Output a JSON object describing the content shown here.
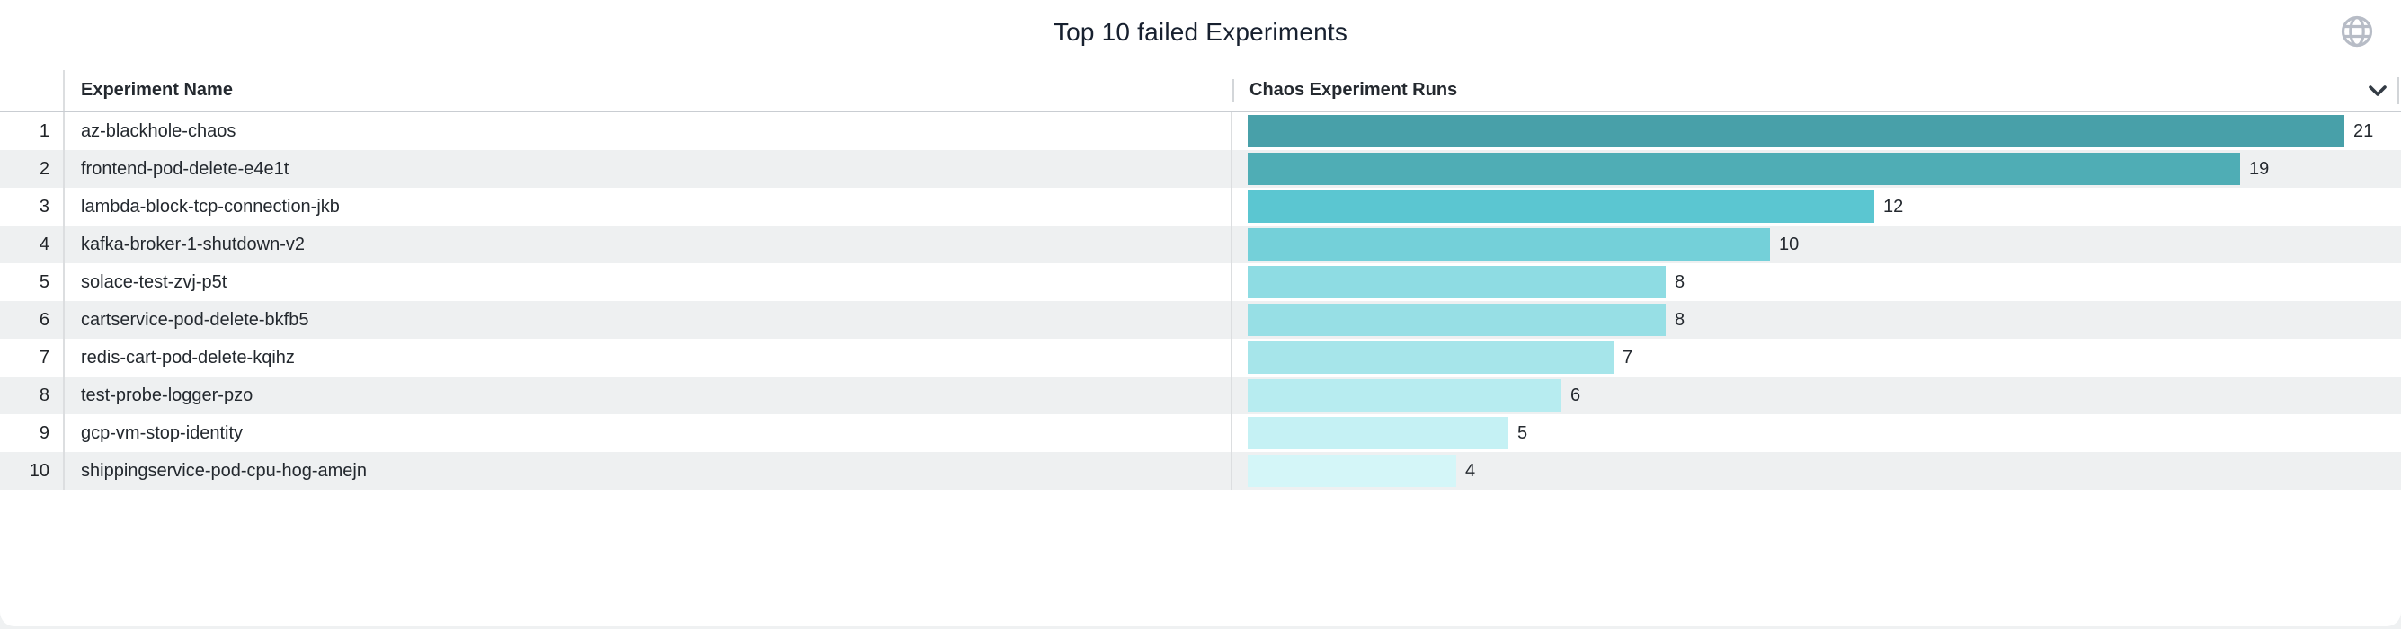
{
  "panel": {
    "title": "Top 10 failed Experiments"
  },
  "icons": {
    "globe": "globe-icon",
    "chevron": "chevron-down-icon"
  },
  "colors": {
    "title_text": "#17202f",
    "header_text": "#24292f",
    "row_text": "#23282e",
    "alt_row_bg": "#eef0f1",
    "divider": "#dcdee0",
    "header_border": "#c9cdd2",
    "globe_icon": "#b7bcc6",
    "chevron_icon": "#333b44",
    "bar_scale_dark": "#48a0a9",
    "bar_scale_light": "#d4f6f8"
  },
  "table": {
    "columns": [
      {
        "label": "Experiment Name"
      },
      {
        "label": "Chaos Experiment Runs"
      }
    ],
    "max_runs": 21,
    "rows": [
      {
        "rank": "1",
        "name": "az-blackhole-chaos",
        "runs": 21,
        "color": "#48a0a9"
      },
      {
        "rank": "2",
        "name": "frontend-pod-delete-e4e1t",
        "runs": 19,
        "color": "#4fadb5"
      },
      {
        "rank": "3",
        "name": "lambda-block-tcp-connection-jkb",
        "runs": 12,
        "color": "#5bc6d1"
      },
      {
        "rank": "4",
        "name": "kafka-broker-1-shutdown-v2",
        "runs": 10,
        "color": "#74d0d9"
      },
      {
        "rank": "5",
        "name": "solace-test-zvj-p5t",
        "runs": 8,
        "color": "#8edce3"
      },
      {
        "rank": "6",
        "name": "cartservice-pod-delete-bkfb5",
        "runs": 8,
        "color": "#97dfe5"
      },
      {
        "rank": "7",
        "name": "redis-cart-pod-delete-kqihz",
        "runs": 7,
        "color": "#a6e5ea"
      },
      {
        "rank": "8",
        "name": "test-probe-logger-pzo",
        "runs": 6,
        "color": "#b7ecf0"
      },
      {
        "rank": "9",
        "name": "gcp-vm-stop-identity",
        "runs": 5,
        "color": "#c5f1f4"
      },
      {
        "rank": "10",
        "name": "shippingservice-pod-cpu-hog-amejn",
        "runs": 4,
        "color": "#d4f6f8"
      }
    ]
  },
  "chart_data": {
    "type": "bar",
    "orientation": "horizontal",
    "title": "Top 10 failed Experiments",
    "xlabel": "Chaos Experiment Runs",
    "ylabel": "Experiment Name",
    "categories": [
      "az-blackhole-chaos",
      "frontend-pod-delete-e4e1t",
      "lambda-block-tcp-connection-jkb",
      "kafka-broker-1-shutdown-v2",
      "solace-test-zvj-p5t",
      "cartservice-pod-delete-bkfb5",
      "redis-cart-pod-delete-kqihz",
      "test-probe-logger-pzo",
      "gcp-vm-stop-identity",
      "shippingservice-pod-cpu-hog-amejn"
    ],
    "values": [
      21,
      19,
      12,
      10,
      8,
      8,
      7,
      6,
      5,
      4
    ],
    "data_labels_shown": true,
    "xlim": [
      0,
      21
    ],
    "grid": false,
    "legend": false,
    "color_scale": [
      "#48a0a9",
      "#4fadb5",
      "#5bc6d1",
      "#74d0d9",
      "#8edce3",
      "#97dfe5",
      "#a6e5ea",
      "#b7ecf0",
      "#c5f1f4",
      "#d4f6f8"
    ]
  }
}
